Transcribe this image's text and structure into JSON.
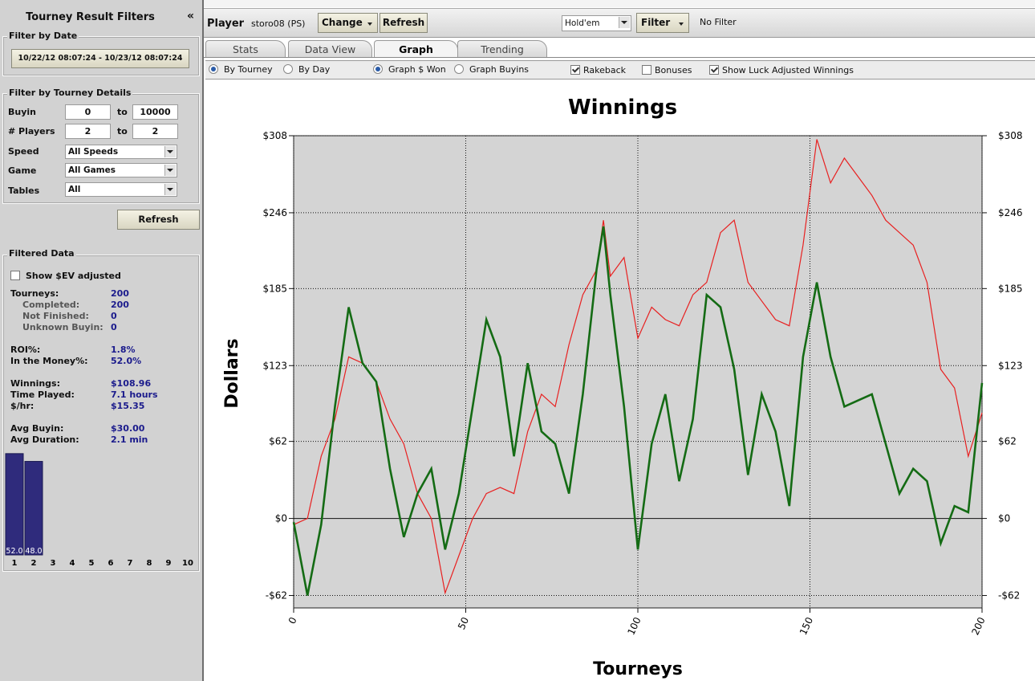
{
  "sidebar": {
    "title": "Tourney Result Filters",
    "collapse": "«",
    "date": {
      "heading": "Filter by Date",
      "range": "10/22/12 08:07:24 - 10/23/12 08:07:24"
    },
    "details": {
      "heading": "Filter by Tourney Details",
      "buyin": {
        "label": "Buyin",
        "min": 0,
        "to": "to",
        "max": 10000
      },
      "players": {
        "label": "# Players",
        "min": 2,
        "to": "to",
        "max": 2
      },
      "speed": {
        "label": "Speed",
        "value": "All Speeds"
      },
      "game": {
        "label": "Game",
        "value": "All Games"
      },
      "tables": {
        "label": "Tables",
        "value": "All"
      }
    },
    "refresh": "Refresh",
    "filtered": {
      "heading": "Filtered Data",
      "ev": "Show $EV adjusted",
      "stats": [
        {
          "label": "Tourneys:",
          "value": "200"
        },
        {
          "label": "Completed:",
          "value": "200"
        },
        {
          "label": "Not Finished:",
          "value": "0"
        },
        {
          "label": "Unknown Buyin:",
          "value": "0"
        },
        {
          "label": "ROI%:",
          "value": "1.8%"
        },
        {
          "label": "In the Money%:",
          "value": "52.0%"
        },
        {
          "label": "Winnings:",
          "value": "$108.96"
        },
        {
          "label": "Time Played:",
          "value": "7.1 hours"
        },
        {
          "label": "$/hr:",
          "value": "$15.35"
        },
        {
          "label": "Avg Buyin:",
          "value": "$30.00"
        },
        {
          "label": "Avg Duration:",
          "value": "2.1 min"
        }
      ]
    }
  },
  "toolbar": {
    "player_label": "Player",
    "player": "storo08 (PS)",
    "change": "Change",
    "refresh": "Refresh",
    "game": "Hold'em",
    "filter": "Filter",
    "filter_state": "No Filter"
  },
  "tabs": [
    "Stats",
    "Data View",
    "Graph",
    "Trending"
  ],
  "options": [
    "By Tourney",
    "By Day",
    "Graph $ Won",
    "Graph Buyins",
    "Rakeback",
    "Bonuses",
    "Show Luck Adjusted Winnings"
  ],
  "chart_data": [
    {
      "type": "line",
      "title": "Winnings",
      "x_label": "Tourneys",
      "y_label": "Dollars",
      "x": [
        0,
        4,
        8,
        12,
        16,
        20,
        24,
        28,
        32,
        36,
        40,
        44,
        48,
        52,
        56,
        60,
        64,
        68,
        72,
        76,
        80,
        84,
        88,
        90,
        92,
        96,
        100,
        104,
        108,
        112,
        116,
        120,
        124,
        128,
        132,
        136,
        140,
        144,
        148,
        152,
        156,
        160,
        164,
        168,
        172,
        176,
        180,
        184,
        188,
        192,
        196,
        200
      ],
      "series": [
        {
          "color": "#e82020",
          "values": [
            -5,
            0,
            50,
            80,
            130,
            125,
            110,
            80,
            60,
            20,
            0,
            -60,
            -30,
            0,
            20,
            25,
            20,
            70,
            100,
            90,
            140,
            180,
            200,
            240,
            195,
            210,
            145,
            170,
            160,
            155,
            180,
            190,
            230,
            240,
            190,
            175,
            160,
            155,
            220,
            305,
            270,
            290,
            275,
            260,
            240,
            230,
            220,
            190,
            120,
            105,
            50,
            85
          ]
        },
        {
          "color": "#146b14",
          "values": [
            -3,
            -62,
            -5,
            90,
            170,
            125,
            110,
            40,
            -15,
            20,
            40,
            -25,
            20,
            90,
            160,
            130,
            50,
            125,
            70,
            60,
            20,
            100,
            200,
            235,
            180,
            90,
            -25,
            60,
            100,
            30,
            80,
            180,
            170,
            120,
            35,
            100,
            70,
            10,
            130,
            190,
            130,
            90,
            95,
            100,
            60,
            20,
            40,
            30,
            -20,
            10,
            5,
            109
          ]
        }
      ],
      "xlim": [
        0,
        200
      ],
      "xticks": [
        0,
        50,
        100,
        150,
        200
      ],
      "ylim": [
        -72,
        308
      ],
      "yticks": [
        {
          "value": -62,
          "label": "-$62"
        },
        {
          "value": 0,
          "label": "$0"
        },
        {
          "value": 62,
          "label": "$62"
        },
        {
          "value": 123,
          "label": "$123"
        },
        {
          "value": 185,
          "label": "$185"
        },
        {
          "value": 246,
          "label": "$246"
        },
        {
          "value": 308,
          "label": "$308"
        }
      ],
      "grid": true
    },
    {
      "type": "bar",
      "categories": [
        "1",
        "2",
        "3",
        "4",
        "5",
        "6",
        "7",
        "8",
        "9",
        "10"
      ],
      "values": [
        52.0,
        48.0,
        null,
        null,
        null,
        null,
        null,
        null,
        null,
        null
      ],
      "value_labels": [
        "52.0",
        "48.0",
        null,
        null,
        null,
        null,
        null,
        null,
        null,
        null
      ],
      "color": "#2f2b7c",
      "ylim": [
        0,
        54
      ]
    }
  ]
}
